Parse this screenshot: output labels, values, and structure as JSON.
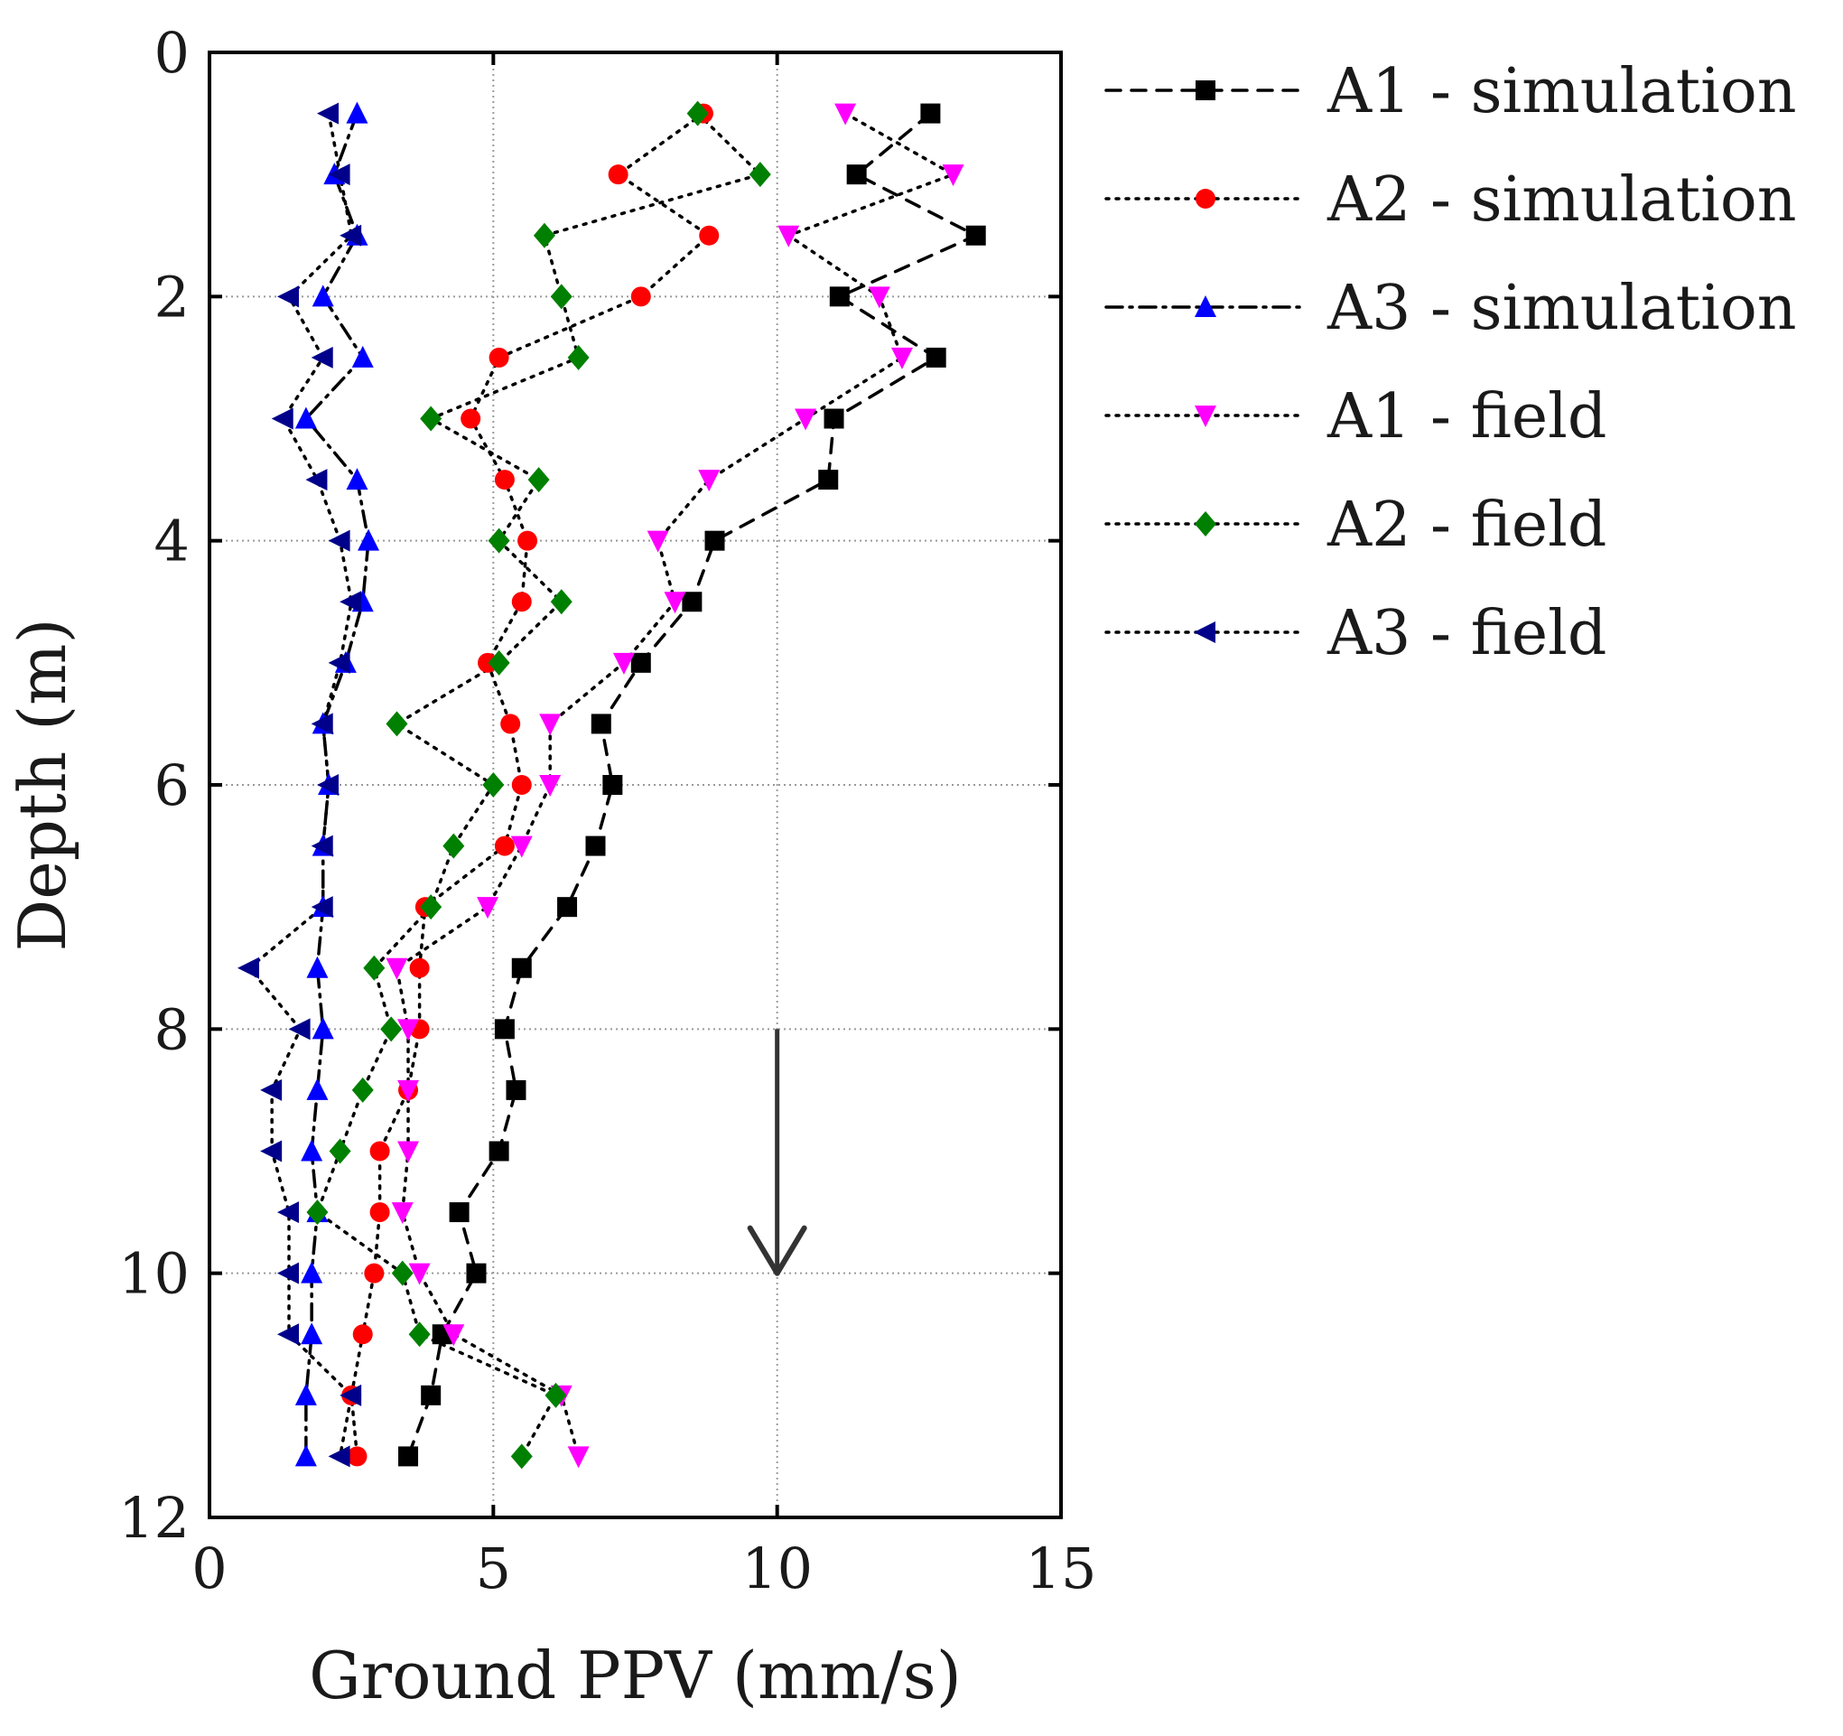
{
  "chart_data": {
    "type": "line",
    "orientation": "vertical-profile",
    "xlabel": "Ground PPV (mm/s)",
    "ylabel": "Depth (m)",
    "xlim": [
      0,
      15
    ],
    "ylim": [
      0,
      12
    ],
    "y_inverted": true,
    "x_ticks": [
      "0",
      "5",
      "10",
      "15"
    ],
    "y_ticks": [
      "0",
      "2",
      "4",
      "6",
      "8",
      "10",
      "12"
    ],
    "x_tick_values": [
      0,
      5,
      10,
      15
    ],
    "y_tick_values": [
      0,
      2,
      4,
      6,
      8,
      10,
      12
    ],
    "grid": true,
    "legend_position": "right",
    "depths": [
      0.5,
      1.0,
      1.5,
      2.0,
      2.5,
      3.0,
      3.5,
      4.0,
      4.5,
      5.0,
      5.5,
      6.0,
      6.5,
      7.0,
      7.5,
      8.0,
      8.5,
      9.0,
      9.5,
      10.0,
      10.5,
      11.0,
      11.5
    ],
    "series": [
      {
        "name": "A1 - simulation",
        "color": "#000000",
        "marker": "square",
        "line": "dash",
        "values": [
          12.7,
          11.4,
          13.5,
          11.1,
          12.8,
          11.0,
          10.9,
          8.9,
          8.5,
          7.6,
          6.9,
          7.1,
          6.8,
          6.3,
          5.5,
          5.2,
          5.4,
          5.1,
          4.4,
          4.7,
          4.1,
          3.9,
          3.5
        ]
      },
      {
        "name": "A2 - simulation",
        "color": "#ff0000",
        "marker": "circle",
        "line": "dot",
        "values": [
          8.7,
          7.2,
          8.8,
          7.6,
          5.1,
          4.6,
          5.2,
          5.6,
          5.5,
          4.9,
          5.3,
          5.5,
          5.2,
          3.8,
          3.7,
          3.7,
          3.5,
          3.0,
          3.0,
          2.9,
          2.7,
          2.5,
          2.6
        ]
      },
      {
        "name": "A3 - simulation",
        "color": "#0000ff",
        "marker": "triangle-up",
        "line": "dashdot",
        "values": [
          2.6,
          2.2,
          2.6,
          2.0,
          2.7,
          1.7,
          2.6,
          2.8,
          2.7,
          2.4,
          2.0,
          2.1,
          2.0,
          2.0,
          1.9,
          2.0,
          1.9,
          1.8,
          1.9,
          1.8,
          1.8,
          1.7,
          1.7
        ]
      },
      {
        "name": "A1 - field",
        "color": "#ff00ff",
        "marker": "triangle-down",
        "line": "dot",
        "values": [
          11.2,
          13.1,
          10.2,
          11.8,
          12.2,
          10.5,
          8.8,
          7.9,
          8.2,
          7.3,
          6.0,
          6.0,
          5.5,
          4.9,
          3.3,
          3.5,
          3.5,
          3.5,
          3.4,
          3.7,
          4.3,
          6.2,
          6.5
        ]
      },
      {
        "name": "A2 - field",
        "color": "#008000",
        "marker": "diamond",
        "line": "dot",
        "values": [
          8.6,
          9.7,
          5.9,
          6.2,
          6.5,
          3.9,
          5.8,
          5.1,
          6.2,
          5.1,
          3.3,
          5.0,
          4.3,
          3.9,
          2.9,
          3.2,
          2.7,
          2.3,
          1.9,
          3.4,
          3.7,
          6.1,
          5.5
        ]
      },
      {
        "name": "A3 - field",
        "color": "#00008b",
        "marker": "triangle-left",
        "line": "dot",
        "values": [
          2.1,
          2.3,
          2.5,
          1.4,
          2.0,
          1.3,
          1.9,
          2.3,
          2.5,
          2.3,
          2.0,
          2.1,
          2.0,
          2.0,
          0.7,
          1.6,
          1.1,
          1.1,
          1.4,
          1.4,
          1.4,
          2.5,
          2.3
        ]
      }
    ],
    "annotation": {
      "type": "arrow",
      "x": 10,
      "y_start": 8,
      "y_end": 10,
      "color": "#333333"
    }
  }
}
